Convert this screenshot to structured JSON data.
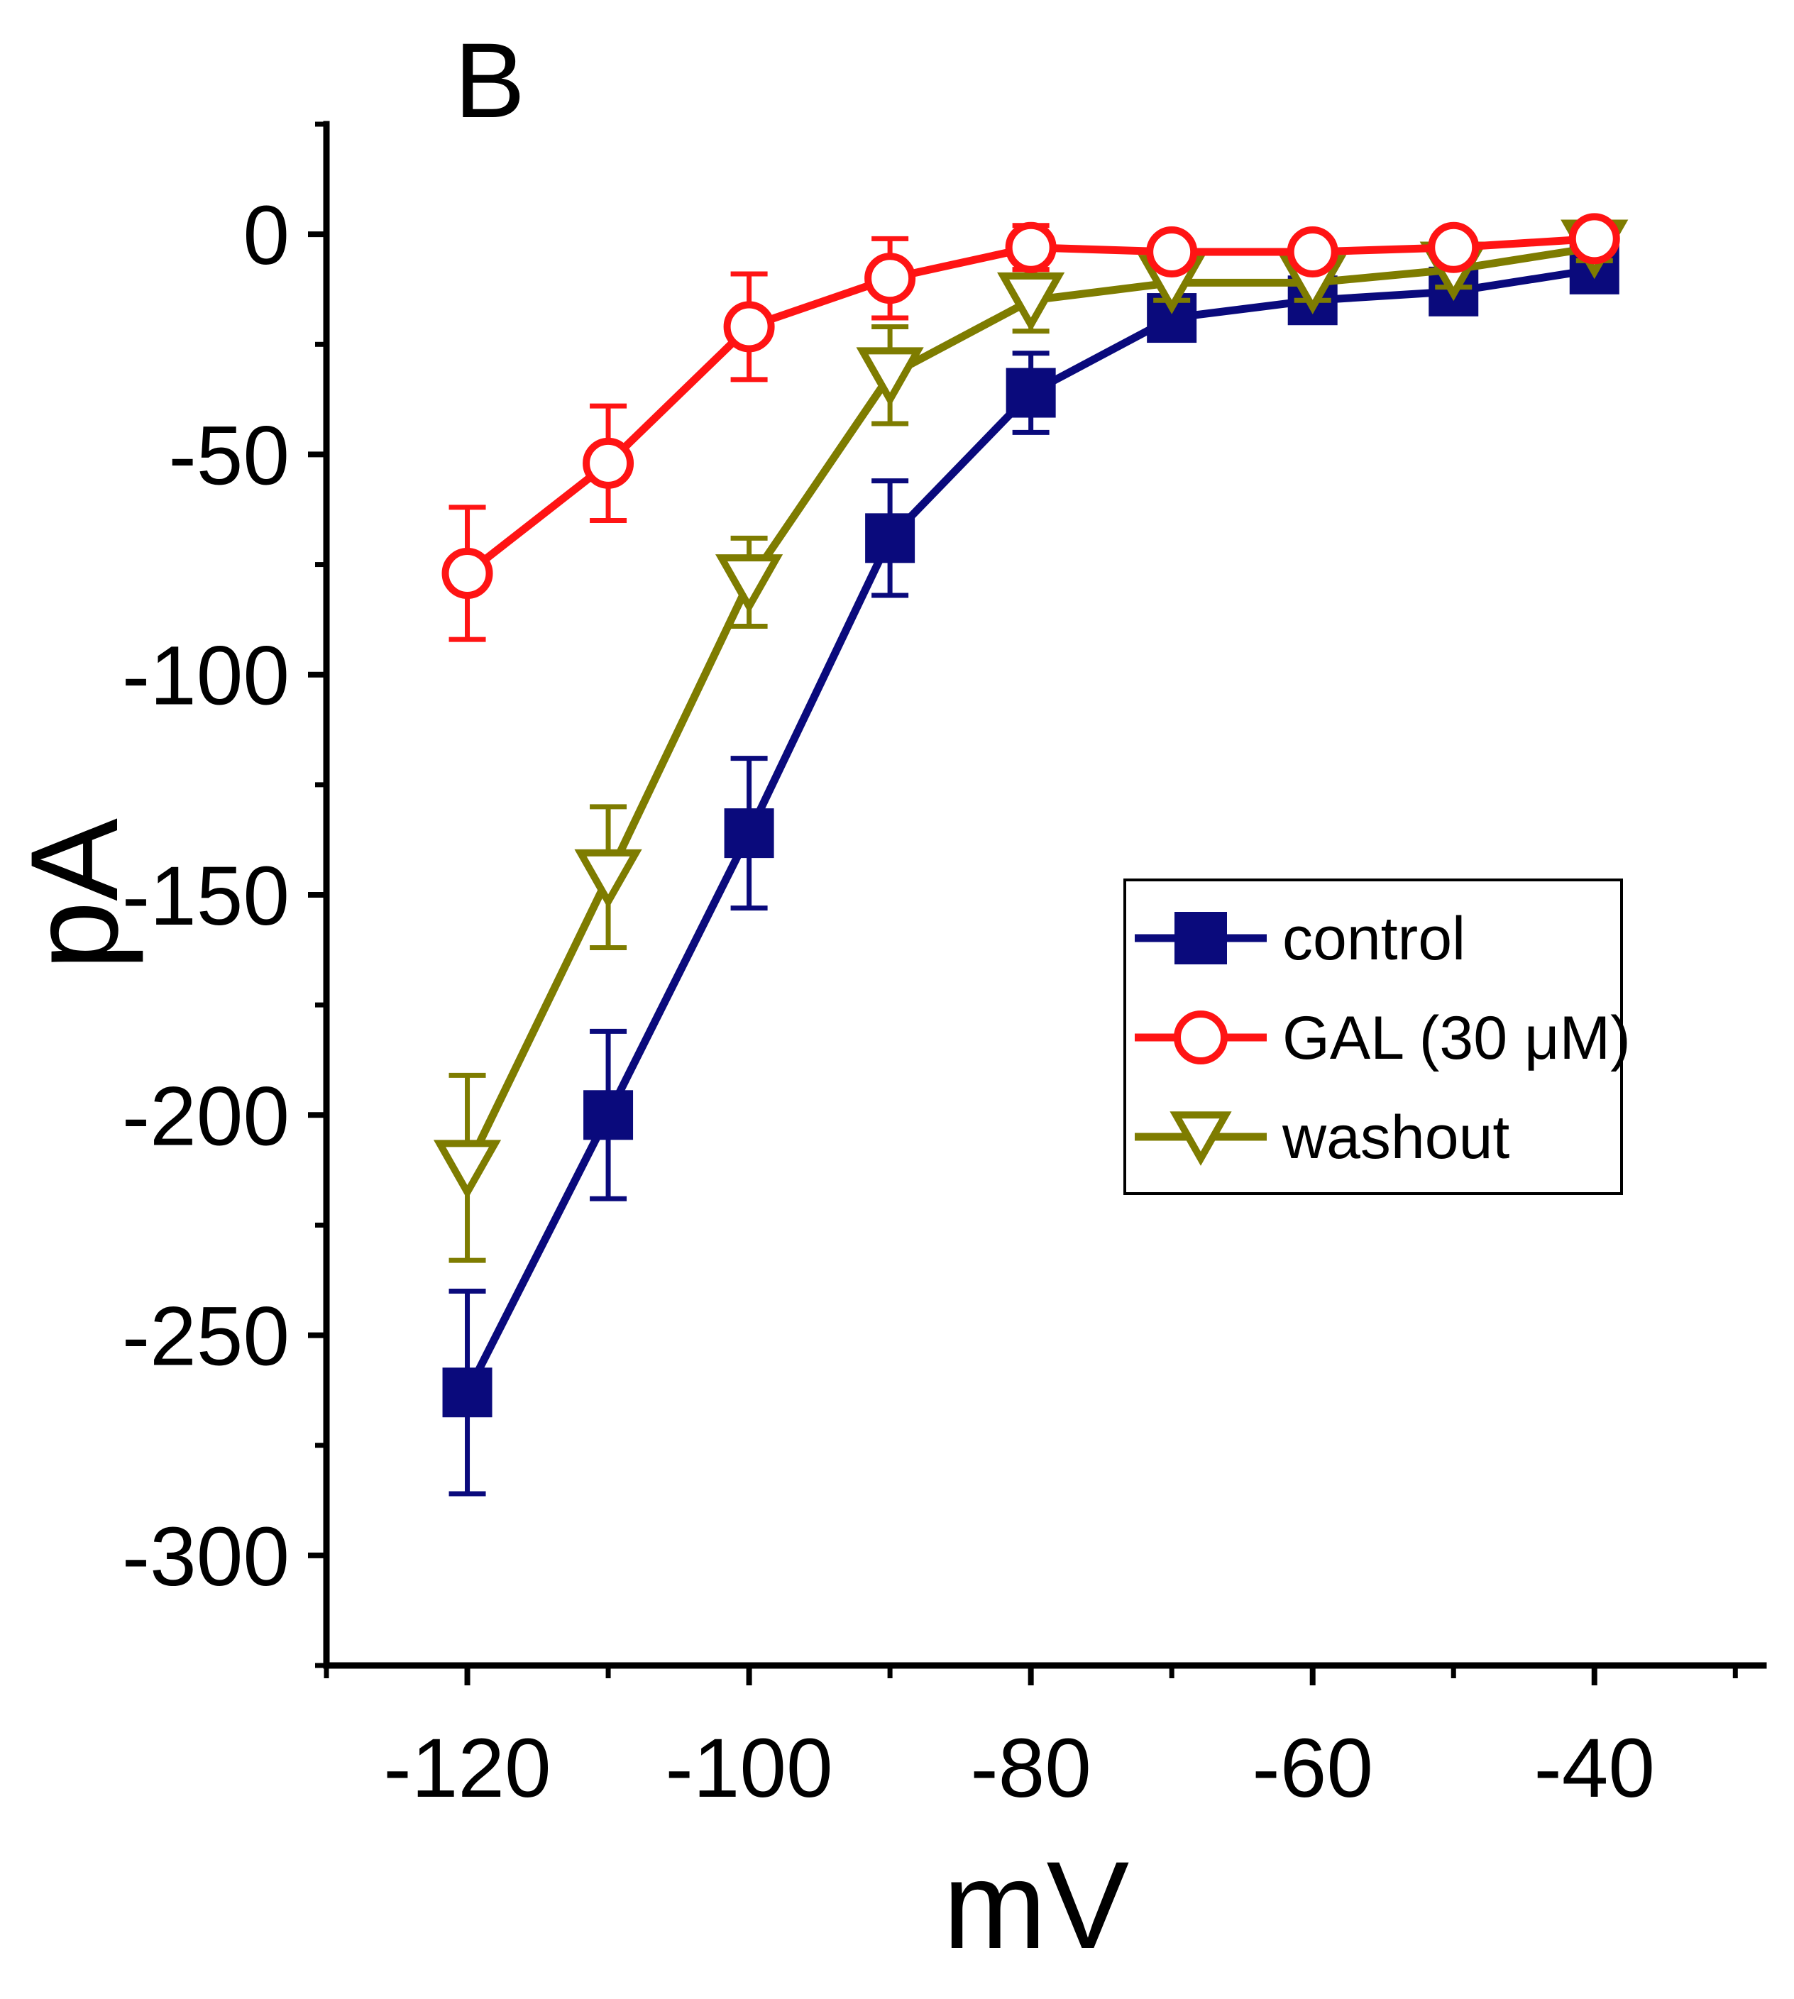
{
  "chart_data": {
    "type": "line",
    "panel_label": "B",
    "xlabel": "mV",
    "ylabel": "pA",
    "xlim": [
      -130,
      -28
    ],
    "ylim": [
      -325,
      25
    ],
    "xticks": [
      -120,
      -100,
      -80,
      -60,
      -40
    ],
    "xtick_labels": [
      "-120",
      "-100",
      "-80",
      "-60",
      "-40"
    ],
    "yticks": [
      0,
      -50,
      -100,
      -150,
      -200,
      -250,
      -300
    ],
    "ytick_labels": [
      "0",
      "-50",
      "-100",
      "-150",
      "-200",
      "-250",
      "-300"
    ],
    "legend_position": "center-right",
    "series": [
      {
        "name": "control",
        "color": "#0a0a7c",
        "marker": "filled-square",
        "x": [
          -120,
          -110,
          -100,
          -90,
          -80,
          -70,
          -60,
          -50,
          -40
        ],
        "y": [
          -263,
          -200,
          -136,
          -69,
          -36,
          -19,
          -15,
          -13,
          -8
        ],
        "err": [
          23,
          19,
          17,
          13,
          9,
          5,
          5,
          4,
          3
        ]
      },
      {
        "name": "GAL (30 μM)",
        "color": "#ff1414",
        "marker": "open-circle",
        "x": [
          -120,
          -110,
          -100,
          -90,
          -80,
          -70,
          -60,
          -50,
          -40
        ],
        "y": [
          -77,
          -52,
          -21,
          -10,
          -3,
          -4,
          -4,
          -3,
          -1
        ],
        "err": [
          15,
          13,
          12,
          9,
          5,
          3,
          3,
          3,
          2
        ]
      },
      {
        "name": "washout",
        "color": "#7e7c00",
        "marker": "open-triangle-down",
        "x": [
          -120,
          -110,
          -100,
          -90,
          -80,
          -70,
          -60,
          -50,
          -40
        ],
        "y": [
          -212,
          -146,
          -79,
          -32,
          -15,
          -11,
          -11,
          -8,
          -3
        ],
        "err": [
          21,
          16,
          10,
          11,
          7,
          4,
          4,
          4,
          3
        ]
      }
    ]
  }
}
